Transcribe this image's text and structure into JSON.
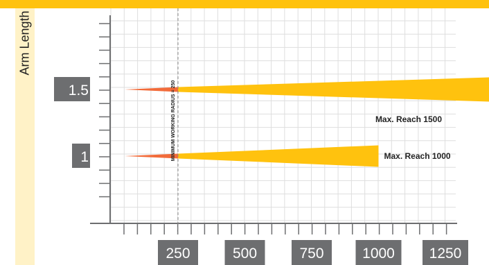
{
  "chart_data": {
    "type": "bar",
    "title": "",
    "xlabel": "",
    "ylabel": "Arm Length",
    "xlim": [
      -150,
      1275
    ],
    "ylim": [
      0,
      2.2
    ],
    "grid": true,
    "x_ticks": [
      "250",
      "500",
      "750",
      "1000",
      "1250"
    ],
    "y_ticks": [
      "1.5",
      "1"
    ],
    "series": [
      {
        "arm_length": 1.5,
        "min_radius": 250,
        "max_reach": 1500,
        "label": "Max. Reach 1500"
      },
      {
        "arm_length": 1,
        "min_radius": 250,
        "max_reach": 1000,
        "label": "Max. Reach 1000"
      }
    ],
    "reference_line": {
      "x": 250,
      "label": "MINIMUM WORKING RADIUS = 250"
    },
    "colors": {
      "reach": "#ffc20e",
      "inner": "#f26b3a",
      "grid": "#dedede",
      "axis": "#6d6e70",
      "accent": "#ffc20e"
    }
  }
}
